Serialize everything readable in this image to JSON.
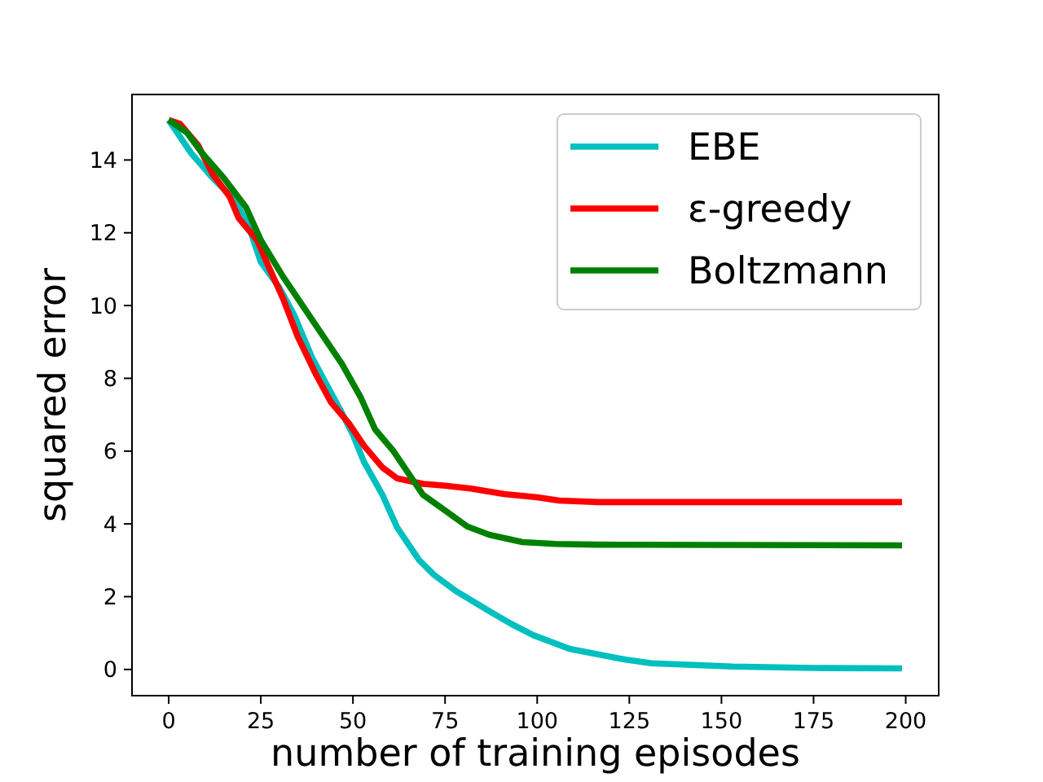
{
  "chart_data": {
    "type": "line",
    "xlabel": "number of training episodes",
    "ylabel": "squared error",
    "xlim": [
      -9.95,
      208.95
    ],
    "ylim": [
      -0.72,
      15.8
    ],
    "xticks": [
      0,
      25,
      50,
      75,
      100,
      125,
      150,
      175,
      200
    ],
    "yticks": [
      0,
      2,
      4,
      6,
      8,
      10,
      12,
      14
    ],
    "grid": false,
    "legend": "top right",
    "line_style": "solid",
    "marker": "none",
    "series": [
      {
        "name": "EBE",
        "color": "#00bfbf",
        "x": [
          0,
          6,
          12,
          18,
          22,
          25,
          30,
          34,
          39,
          43,
          47,
          50,
          53,
          58,
          62,
          68,
          72,
          78,
          87,
          93,
          99,
          109,
          124,
          131,
          153,
          175,
          199
        ],
        "values": [
          15.1,
          14.2,
          13.5,
          12.9,
          12.1,
          11.2,
          10.5,
          9.75,
          8.55,
          7.8,
          7.05,
          6.45,
          5.7,
          4.8,
          3.9,
          3.0,
          2.6,
          2.15,
          1.6,
          1.25,
          0.94,
          0.56,
          0.27,
          0.17,
          0.08,
          0.04,
          0.03
        ]
      },
      {
        "name": "ε-greedy",
        "color": "#ff0000",
        "x": [
          0,
          3,
          8,
          12,
          16.5,
          19,
          24,
          27,
          31,
          35,
          40,
          44,
          49,
          53,
          58,
          62,
          69,
          75,
          82,
          91,
          100,
          106,
          116.5,
          199
        ],
        "values": [
          15.1,
          15.0,
          14.4,
          13.6,
          13.0,
          12.4,
          11.8,
          11.1,
          10.2,
          9.15,
          8.1,
          7.35,
          6.75,
          6.15,
          5.55,
          5.25,
          5.1,
          5.05,
          4.97,
          4.82,
          4.73,
          4.64,
          4.6,
          4.6
        ]
      },
      {
        "name": "Boltzmann",
        "color": "#008000",
        "x": [
          0,
          5,
          9,
          15,
          21,
          25,
          31,
          37,
          43,
          47,
          52,
          56,
          61,
          65,
          69,
          75,
          81,
          87,
          96,
          105,
          116,
          199
        ],
        "values": [
          15.1,
          14.75,
          14.2,
          13.5,
          12.7,
          11.8,
          10.8,
          9.9,
          9.0,
          8.4,
          7.5,
          6.6,
          6.0,
          5.4,
          4.8,
          4.37,
          3.93,
          3.7,
          3.5,
          3.45,
          3.43,
          3.41
        ]
      }
    ]
  }
}
